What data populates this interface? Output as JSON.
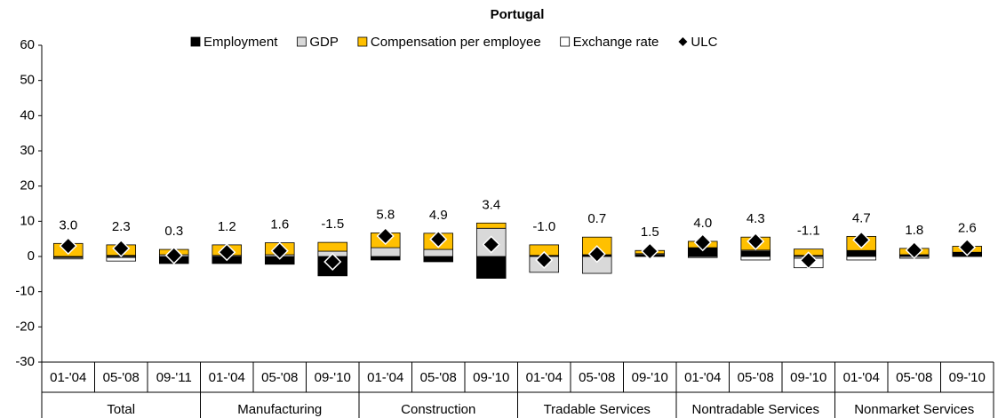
{
  "chart_data": {
    "type": "stacked-bar",
    "title": "Portugal",
    "categories": [
      "01-'04",
      "05-'08",
      "09-'11",
      "01-'04",
      "05-'08",
      "09-'10",
      "01-'04",
      "05-'08",
      "09-'10",
      "01-'04",
      "05-'08",
      "09-'10",
      "01-'04",
      "05-'08",
      "09-'10",
      "01-'04",
      "05-'08",
      "09-'10"
    ],
    "groups": [
      "Total",
      "Manufacturing",
      "Construction",
      "Tradable Services",
      "Nontradable Services",
      "Nonmarket Services"
    ],
    "series": [
      {
        "name": "Employment",
        "color": "#000000",
        "values": [
          -0.3,
          0.3,
          -2.0,
          -2.0,
          -2.2,
          -5.5,
          -1.0,
          -1.5,
          -6.2,
          0.3,
          0.5,
          0.5,
          2.5,
          1.5,
          0.3,
          1.5,
          0.5,
          1.2
        ]
      },
      {
        "name": "GDP",
        "color": "#d9d9d9",
        "values": [
          -0.4,
          -0.3,
          0.5,
          0.3,
          0.5,
          1.5,
          2.5,
          2.0,
          8.0,
          -4.5,
          -4.8,
          0.3,
          -0.3,
          0.3,
          -0.5,
          0.2,
          -0.5,
          0
        ]
      },
      {
        "name": "Compensation per employee",
        "color": "#ffc000",
        "values": [
          3.7,
          3.0,
          1.5,
          3.0,
          3.4,
          2.5,
          4.2,
          4.6,
          1.5,
          3.0,
          5.0,
          0.9,
          1.8,
          3.7,
          1.8,
          4.0,
          1.8,
          1.7
        ]
      },
      {
        "name": "Exchange rate",
        "color": "#ffffff",
        "values": [
          0,
          -1.0,
          0,
          0,
          0,
          0,
          0,
          0,
          0,
          0,
          0,
          0,
          0,
          -1.0,
          -2.7,
          -1.0,
          0,
          0
        ]
      },
      {
        "name": "ULC",
        "color": "#000000",
        "marker": "diamond",
        "values": [
          3.0,
          2.3,
          0.3,
          1.2,
          1.6,
          -1.5,
          5.8,
          4.9,
          3.4,
          -1.0,
          0.7,
          1.5,
          4.0,
          4.3,
          -1.1,
          4.7,
          1.8,
          2.6
        ],
        "value_labels": [
          "3.0",
          "2.3",
          "0.3",
          "1.2",
          "1.6",
          "-1.5",
          "5.8",
          "4.9",
          "3.4",
          "-1.0",
          "0.7",
          "1.5",
          "4.0",
          "4.3",
          "-1.1",
          "4.7",
          "1.8",
          "2.6"
        ]
      }
    ],
    "ylim": [
      -30,
      60
    ],
    "yticks": [
      -30,
      -20,
      -10,
      0,
      10,
      20,
      30,
      40,
      50,
      60
    ],
    "grid": false,
    "legend": "top"
  }
}
